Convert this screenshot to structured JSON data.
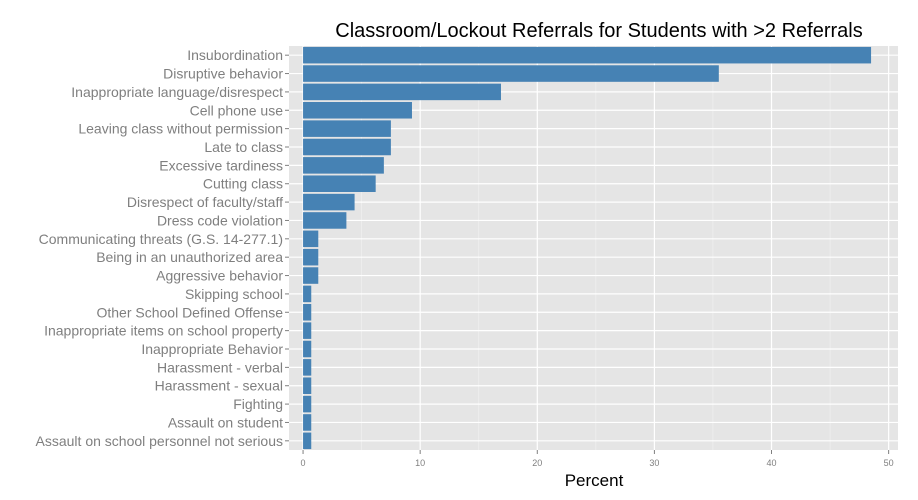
{
  "chart_data": {
    "type": "bar",
    "orientation": "horizontal",
    "title": "Classroom/Lockout Referrals for Students with >2 Referrals",
    "xlabel": "Percent",
    "ylabel": "",
    "xlim": [
      -1.2,
      50.8
    ],
    "xticks": [
      0,
      10,
      20,
      30,
      40,
      50
    ],
    "grid": true,
    "legend": "none",
    "bar_color": "#4682b4",
    "panel_color": "#e5e5e5",
    "categories": [
      "Insubordination",
      "Disruptive behavior",
      "Inappropriate language/disrespect",
      "Cell phone use",
      "Leaving class without permission",
      "Late to class",
      "Excessive tardiness",
      "Cutting class",
      "Disrespect of faculty/staff",
      "Dress code violation",
      "Communicating threats (G.S. 14-277.1)",
      "Being in an unauthorized area",
      "Aggressive behavior",
      "Skipping school",
      "Other School Defined Offense",
      "Inappropriate items on school property",
      "Inappropriate Behavior",
      "Harassment - verbal",
      "Harassment - sexual",
      "Fighting",
      "Assault on student",
      "Assault on school personnel not serious"
    ],
    "values": [
      48.5,
      35.5,
      16.9,
      9.3,
      7.5,
      7.5,
      6.9,
      6.2,
      4.4,
      3.7,
      1.3,
      1.3,
      1.3,
      0.7,
      0.7,
      0.7,
      0.7,
      0.7,
      0.7,
      0.7,
      0.7,
      0.7
    ]
  }
}
